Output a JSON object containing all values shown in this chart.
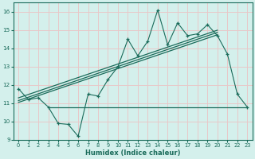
{
  "title": "",
  "xlabel": "Humidex (Indice chaleur)",
  "xlim": [
    -0.5,
    23.5
  ],
  "ylim": [
    9,
    16.5
  ],
  "yticks": [
    9,
    10,
    11,
    12,
    13,
    14,
    15,
    16
  ],
  "xticks": [
    0,
    1,
    2,
    3,
    4,
    5,
    6,
    7,
    8,
    9,
    10,
    11,
    12,
    13,
    14,
    15,
    16,
    17,
    18,
    19,
    20,
    21,
    22,
    23
  ],
  "bg_color": "#d4f0ec",
  "grid_color": "#e8c8c8",
  "line_color": "#1a6b5a",
  "data_x": [
    0,
    1,
    2,
    3,
    4,
    5,
    6,
    7,
    8,
    9,
    10,
    11,
    12,
    13,
    14,
    15,
    16,
    17,
    18,
    19,
    20,
    21,
    22,
    23
  ],
  "data_y": [
    11.8,
    11.2,
    11.3,
    10.8,
    9.9,
    9.85,
    9.2,
    11.5,
    11.4,
    12.3,
    13.0,
    14.5,
    13.6,
    14.4,
    16.1,
    14.2,
    15.4,
    14.7,
    14.8,
    15.3,
    14.7,
    13.7,
    11.5,
    10.8
  ],
  "trend1_x": [
    0,
    20
  ],
  "trend1_y": [
    11.3,
    15.0
  ],
  "trend2_x": [
    0,
    20
  ],
  "trend2_y": [
    11.05,
    14.75
  ],
  "trend3_x": [
    0,
    20
  ],
  "trend3_y": [
    11.15,
    14.88
  ],
  "hline_y": 10.8,
  "hline_x_start": 3,
  "hline_x_end": 23
}
